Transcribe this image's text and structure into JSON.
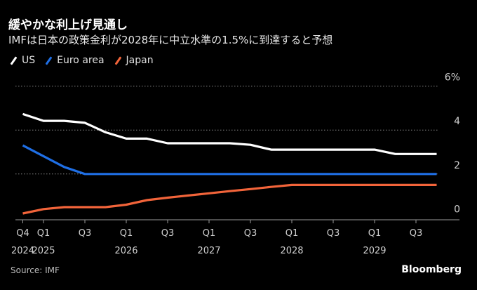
{
  "title": "緩やかな利上げ見通し",
  "subtitle": "IMFは日本の政策金利が2028年に中立水準の1.5%に到達すると予想",
  "source": "Source: IMF",
  "brand": "Bloomberg",
  "legend": [
    {
      "label": "US",
      "color": "#ffffff"
    },
    {
      "label": "Euro area",
      "color": "#1f6fe5"
    },
    {
      "label": "Japan",
      "color": "#f2643a"
    }
  ],
  "chart_data": {
    "type": "line",
    "title": "緩やかな利上げ見通し",
    "subtitle": "IMFは日本の政策金利が2028年に中立水準の1.5%に到達すると予想",
    "xlabel": "",
    "ylabel": "",
    "ylim": [
      0,
      6
    ],
    "yticks": [
      0,
      2,
      4,
      6
    ],
    "ytick_labels": [
      "0",
      "2",
      "4",
      "6%"
    ],
    "grid": true,
    "legend_position": "top-left",
    "x": [
      "Q4 2024",
      "Q1 2025",
      "Q2 2025",
      "Q3 2025",
      "Q4 2025",
      "Q1 2026",
      "Q2 2026",
      "Q3 2026",
      "Q4 2026",
      "Q1 2027",
      "Q2 2027",
      "Q3 2027",
      "Q4 2027",
      "Q1 2028",
      "Q2 2028",
      "Q3 2028",
      "Q4 2028",
      "Q1 2029",
      "Q2 2029",
      "Q3 2029",
      "Q4 2029"
    ],
    "xticks": [
      {
        "index": 0,
        "q": "Q4",
        "year": "2024"
      },
      {
        "index": 1,
        "q": "Q1",
        "year": "2025"
      },
      {
        "index": 3,
        "q": "Q3",
        "year": ""
      },
      {
        "index": 5,
        "q": "Q1",
        "year": "2026"
      },
      {
        "index": 7,
        "q": "Q3",
        "year": ""
      },
      {
        "index": 9,
        "q": "Q1",
        "year": "2027"
      },
      {
        "index": 11,
        "q": "Q3",
        "year": ""
      },
      {
        "index": 13,
        "q": "Q1",
        "year": "2028"
      },
      {
        "index": 15,
        "q": "Q3",
        "year": ""
      },
      {
        "index": 17,
        "q": "Q1",
        "year": "2029"
      },
      {
        "index": 19,
        "q": "Q3",
        "year": ""
      }
    ],
    "series": [
      {
        "name": "US",
        "color": "#ffffff",
        "values": [
          4.73,
          4.42,
          4.42,
          4.33,
          3.9,
          3.61,
          3.61,
          3.4,
          3.4,
          3.4,
          3.4,
          3.33,
          3.11,
          3.11,
          3.11,
          3.11,
          3.11,
          3.11,
          2.91,
          2.91,
          2.91
        ]
      },
      {
        "name": "Euro area",
        "color": "#1f6fe5",
        "values": [
          3.3,
          2.81,
          2.32,
          2.0,
          2.0,
          2.0,
          2.0,
          2.0,
          2.0,
          2.0,
          2.0,
          2.0,
          2.0,
          2.0,
          2.0,
          2.0,
          2.0,
          2.0,
          2.0,
          2.0,
          2.0
        ]
      },
      {
        "name": "Japan",
        "color": "#f2643a",
        "values": [
          0.2,
          0.4,
          0.49,
          0.49,
          0.49,
          0.6,
          0.81,
          0.92,
          1.02,
          1.12,
          1.22,
          1.31,
          1.41,
          1.5,
          1.5,
          1.5,
          1.5,
          1.5,
          1.5,
          1.5,
          1.5
        ]
      }
    ]
  }
}
